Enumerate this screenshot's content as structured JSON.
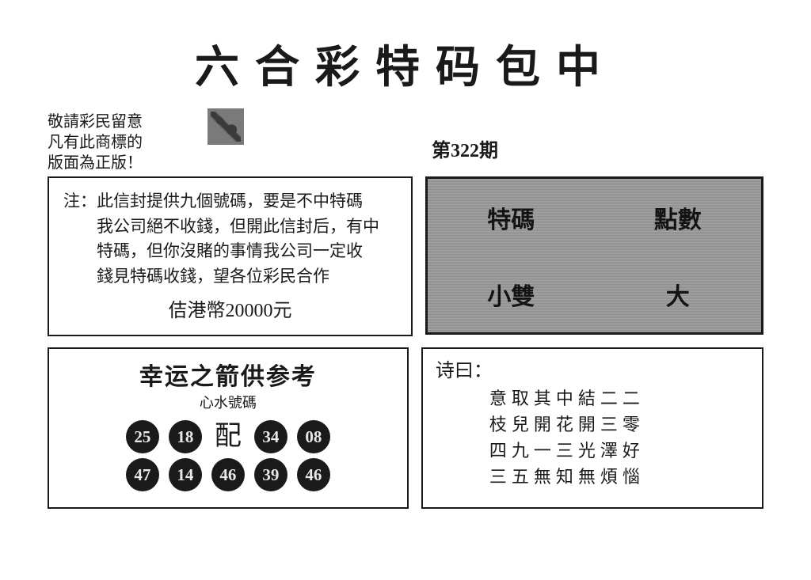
{
  "title": "六合彩特码包中",
  "issue": "第322期",
  "notice": {
    "line1": "敬請彩民留意",
    "line2": "凡有此商標的",
    "line3": "版面為正版！"
  },
  "envelope": {
    "lead": "注：",
    "line1": "此信封提供九個號碼，要是不中特碼",
    "line2": "我公司絕不收錢，但開此信封后，有中",
    "line3": "特碼，但你沒賭的事情我公司一定收",
    "line4": "錢見特碼收錢，望各位彩民合作",
    "price": "佶港幣20000元"
  },
  "darkbox": {
    "tl": "特碼",
    "tr": "點數",
    "bl": "小雙",
    "br": "大"
  },
  "arrow": {
    "title": "幸运之箭供参考",
    "subtitle": "心水號碼",
    "pei": "配",
    "row1": [
      "25",
      "18"
    ],
    "row1b": [
      "34",
      "08"
    ],
    "row2": [
      "47",
      "14",
      "46",
      "39",
      "46"
    ],
    "ball_bg": "#1a1a1a",
    "ball_fg": "#e8e8e8"
  },
  "poem": {
    "title": "诗曰：",
    "lines": [
      "意取其中結二二",
      "枝兒開花開三零",
      "四九一三光澤好",
      "三五無知無煩惱"
    ]
  },
  "colors": {
    "text": "#1a1a1a",
    "bg": "#ffffff",
    "darkbox": "#999999"
  }
}
